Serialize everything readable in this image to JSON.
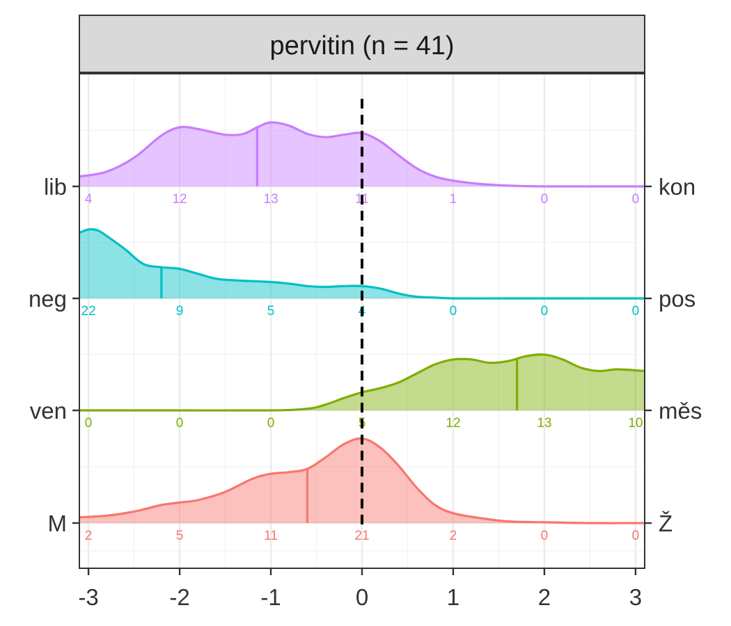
{
  "chart_data": {
    "type": "area",
    "title": "pervitin (n = 41)",
    "xlim": [
      -3.1,
      3.1
    ],
    "x_ticks": [
      -3,
      -2,
      -1,
      0,
      1,
      2,
      3
    ],
    "x_tick_labels": [
      "-3",
      "-2",
      "-1",
      "0",
      "1",
      "2",
      "3"
    ],
    "reference_line_x": 0,
    "count_positions": [
      -3,
      -2,
      -1,
      0,
      1,
      2,
      3
    ],
    "grid": true,
    "series": [
      {
        "left_label": "lib",
        "right_label": "kon",
        "color": "#C77CFF",
        "mean": -1.15,
        "counts": [
          "4",
          "12",
          "13",
          "11",
          "1",
          "0",
          "0"
        ],
        "density_x": [
          -3.1,
          -2.8,
          -2.5,
          -2.2,
          -2.0,
          -1.8,
          -1.5,
          -1.3,
          -1.15,
          -1.0,
          -0.8,
          -0.6,
          -0.4,
          -0.2,
          0.0,
          0.2,
          0.4,
          0.6,
          0.8,
          1.0,
          1.3,
          1.6,
          2.0,
          2.5,
          3.1
        ],
        "density_y": [
          0.12,
          0.18,
          0.35,
          0.62,
          0.72,
          0.7,
          0.63,
          0.64,
          0.72,
          0.78,
          0.74,
          0.64,
          0.6,
          0.63,
          0.65,
          0.55,
          0.38,
          0.22,
          0.12,
          0.07,
          0.03,
          0.01,
          0.0,
          0.0,
          0.0
        ]
      },
      {
        "left_label": "neg",
        "right_label": "pos",
        "color": "#00BFC4",
        "mean": -2.2,
        "counts": [
          "22",
          "9",
          "5",
          "4",
          "0",
          "0",
          "0"
        ],
        "density_x": [
          -3.1,
          -3.0,
          -2.9,
          -2.8,
          -2.6,
          -2.4,
          -2.2,
          -2.0,
          -1.8,
          -1.6,
          -1.4,
          -1.2,
          -1.0,
          -0.8,
          -0.6,
          -0.4,
          -0.2,
          0.0,
          0.2,
          0.4,
          0.6,
          0.8,
          1.0,
          1.5,
          2.0,
          3.1
        ],
        "density_y": [
          0.8,
          0.84,
          0.83,
          0.76,
          0.6,
          0.42,
          0.38,
          0.36,
          0.3,
          0.24,
          0.22,
          0.21,
          0.2,
          0.18,
          0.15,
          0.14,
          0.15,
          0.15,
          0.12,
          0.06,
          0.02,
          0.01,
          0.0,
          0.0,
          0.0,
          0.0
        ]
      },
      {
        "left_label": "ven",
        "right_label": "měs",
        "color": "#7CAE00",
        "mean": 1.7,
        "counts": [
          "0",
          "0",
          "0",
          "5",
          "12",
          "13",
          "10"
        ],
        "density_x": [
          -3.1,
          -2.0,
          -1.0,
          -0.6,
          -0.4,
          -0.2,
          0.0,
          0.2,
          0.4,
          0.6,
          0.8,
          1.0,
          1.2,
          1.4,
          1.6,
          1.8,
          2.0,
          2.2,
          2.4,
          2.6,
          2.8,
          3.1
        ],
        "density_y": [
          0.0,
          0.0,
          0.0,
          0.02,
          0.07,
          0.15,
          0.22,
          0.27,
          0.34,
          0.45,
          0.56,
          0.62,
          0.62,
          0.58,
          0.6,
          0.66,
          0.68,
          0.62,
          0.52,
          0.48,
          0.5,
          0.48
        ]
      },
      {
        "left_label": "M",
        "right_label": "Ž",
        "color": "#F8766D",
        "mean": -0.6,
        "counts": [
          "2",
          "5",
          "11",
          "21",
          "2",
          "0",
          "0"
        ],
        "density_x": [
          -3.1,
          -2.8,
          -2.5,
          -2.2,
          -2.0,
          -1.8,
          -1.5,
          -1.2,
          -1.0,
          -0.8,
          -0.6,
          -0.4,
          -0.2,
          0.0,
          0.2,
          0.4,
          0.6,
          0.8,
          1.0,
          1.3,
          1.6,
          2.0,
          2.5,
          3.1
        ],
        "density_y": [
          0.07,
          0.09,
          0.14,
          0.22,
          0.25,
          0.28,
          0.38,
          0.54,
          0.6,
          0.62,
          0.66,
          0.8,
          0.96,
          1.03,
          0.92,
          0.7,
          0.43,
          0.22,
          0.12,
          0.06,
          0.02,
          0.01,
          0.0,
          0.0
        ]
      }
    ]
  }
}
